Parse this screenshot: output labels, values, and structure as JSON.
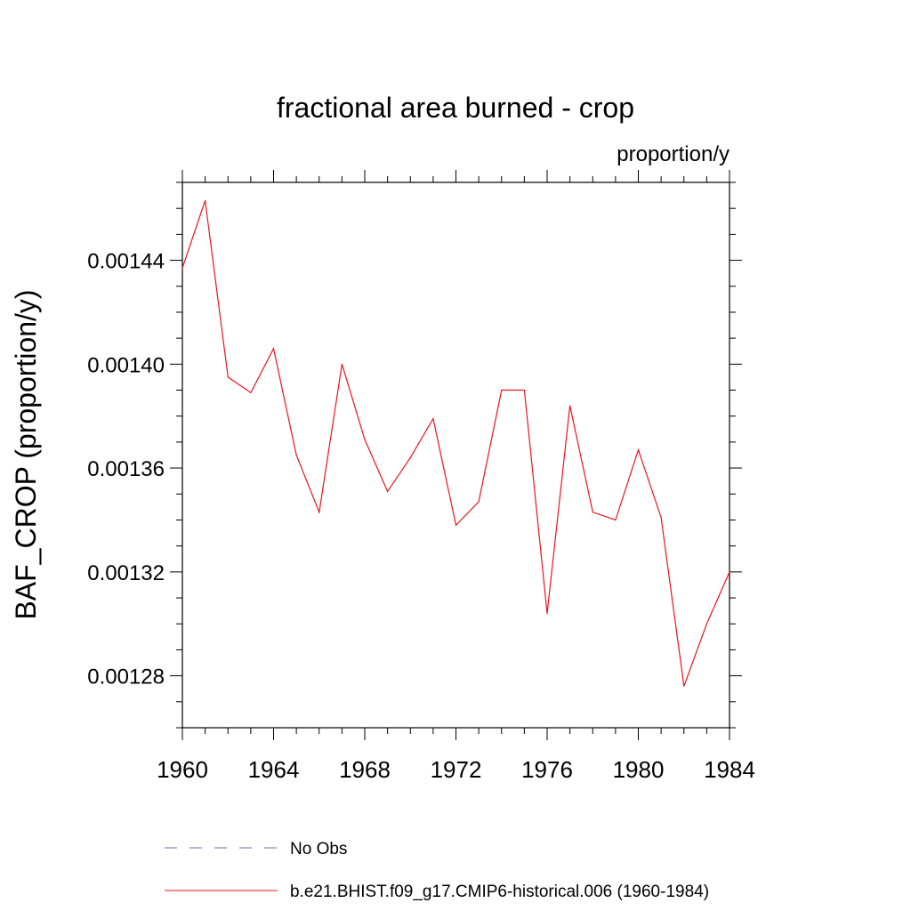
{
  "chart_data": {
    "type": "line",
    "title": "fractional area burned - crop",
    "units_label": "proportion/y",
    "ylabel": "BAF_CROP  (proportion/y)",
    "xlabel": "",
    "xlim": [
      1960,
      1984
    ],
    "ylim": [
      0.00126,
      0.00147
    ],
    "x_ticks": [
      1960,
      1964,
      1968,
      1972,
      1976,
      1980,
      1984
    ],
    "x_tick_labels": [
      "1960",
      "1964",
      "1968",
      "1972",
      "1976",
      "1980",
      "1984"
    ],
    "y_ticks": [
      0.00128,
      0.00132,
      0.00136,
      0.0014,
      0.00144
    ],
    "y_tick_labels": [
      "0.00128",
      "0.00132",
      "0.00136",
      "0.00140",
      "0.00144"
    ],
    "grid": false,
    "legend_position": "bottom",
    "x": [
      1960,
      1961,
      1962,
      1963,
      1964,
      1965,
      1966,
      1967,
      1968,
      1969,
      1970,
      1971,
      1972,
      1973,
      1974,
      1975,
      1976,
      1977,
      1978,
      1979,
      1980,
      1981,
      1982,
      1983,
      1984
    ],
    "series": [
      {
        "name": "b.e21.BHIST.f09_g17.CMIP6-historical.006 (1960-1984)",
        "color": "#e8141c",
        "style": "solid",
        "values": [
          0.001437,
          0.001463,
          0.001395,
          0.001389,
          0.001406,
          0.001365,
          0.001343,
          0.0014,
          0.001371,
          0.001351,
          0.001364,
          0.001379,
          0.001338,
          0.001347,
          0.00139,
          0.00139,
          0.001304,
          0.001384,
          0.001343,
          0.00134,
          0.001367,
          0.001341,
          0.001276,
          0.0013,
          0.00132
        ]
      }
    ],
    "legend": [
      {
        "label": "No Obs",
        "color": "#6f68a8",
        "style": "dashed"
      },
      {
        "label": "b.e21.BHIST.f09_g17.CMIP6-historical.006 (1960-1984)",
        "color": "#e8141c",
        "style": "solid"
      }
    ]
  }
}
